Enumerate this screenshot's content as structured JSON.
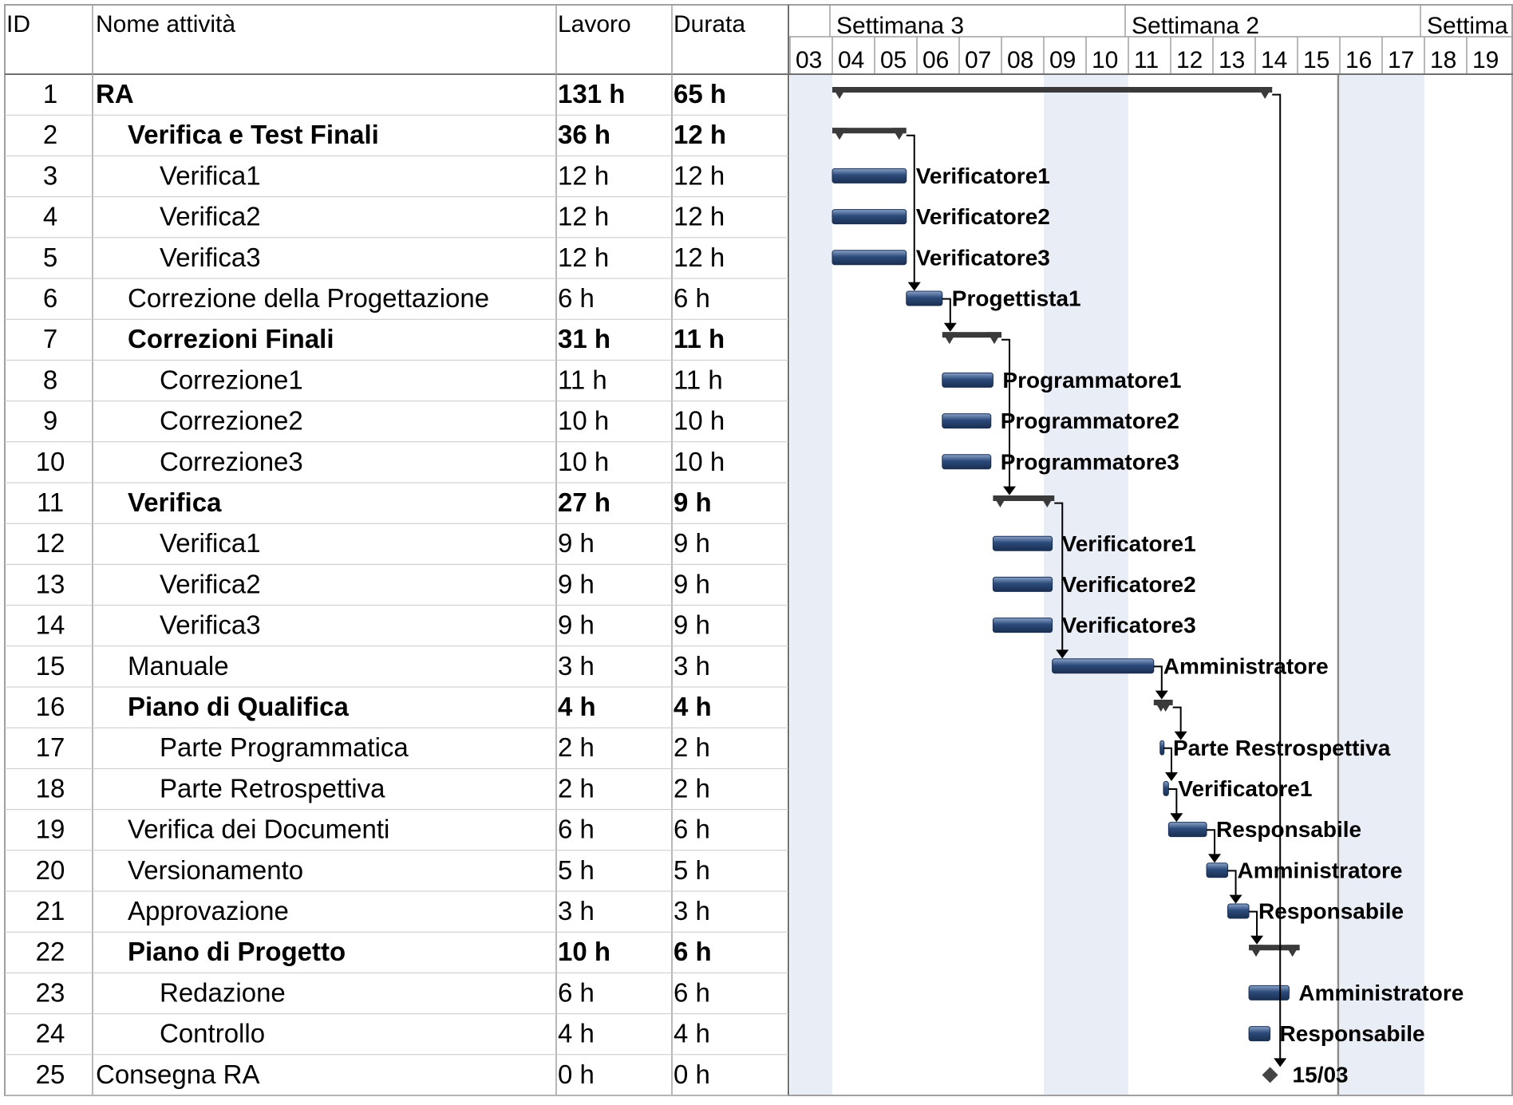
{
  "table": {
    "columns": {
      "id": "ID",
      "name": "Nome attività",
      "work": "Lavoro",
      "duration": "Durata"
    }
  },
  "timeline": {
    "weeks": [
      "Settimana 3",
      "Settimana 2",
      "Settima"
    ],
    "days": [
      "03",
      "04",
      "05",
      "06",
      "07",
      "08",
      "09",
      "10",
      "11",
      "12",
      "13",
      "14",
      "15",
      "16",
      "17",
      "18",
      "19"
    ],
    "weekend_days": [
      "03",
      "09",
      "10",
      "16",
      "17"
    ],
    "status_line_day": "15"
  },
  "colors": {
    "task_bar": "#2b4a7a",
    "summary_bar": "#3a3a3a",
    "weekend_shade": "#e8edf6",
    "grid_line": "#a0a0a0",
    "link_line": "#000000"
  },
  "chart_data": {
    "type": "gantt",
    "tasks": [
      {
        "id": "1",
        "name": "RA",
        "work": "131 h",
        "duration": "65 h",
        "level": 0,
        "summary": true,
        "start": 4.0,
        "end": 14.4,
        "resource": ""
      },
      {
        "id": "2",
        "name": "Verifica e Test Finali",
        "work": "36 h",
        "duration": "12 h",
        "level": 1,
        "summary": true,
        "start": 4.0,
        "end": 5.75,
        "resource": ""
      },
      {
        "id": "3",
        "name": "Verifica1",
        "work": "12 h",
        "duration": "12 h",
        "level": 2,
        "summary": false,
        "start": 4.0,
        "end": 5.75,
        "resource": "Verificatore1"
      },
      {
        "id": "4",
        "name": "Verifica2",
        "work": "12 h",
        "duration": "12 h",
        "level": 2,
        "summary": false,
        "start": 4.0,
        "end": 5.75,
        "resource": "Verificatore2"
      },
      {
        "id": "5",
        "name": "Verifica3",
        "work": "12 h",
        "duration": "12 h",
        "level": 2,
        "summary": false,
        "start": 4.0,
        "end": 5.75,
        "resource": "Verificatore3"
      },
      {
        "id": "6",
        "name": "Correzione della Progettazione",
        "work": "6 h",
        "duration": "6 h",
        "level": 1,
        "summary": false,
        "start": 5.75,
        "end": 6.6,
        "resource": "Progettista1"
      },
      {
        "id": "7",
        "name": "Correzioni Finali",
        "work": "31 h",
        "duration": "11 h",
        "level": 1,
        "summary": true,
        "start": 6.6,
        "end": 8.0,
        "resource": ""
      },
      {
        "id": "8",
        "name": "Correzione1",
        "work": "11 h",
        "duration": "11 h",
        "level": 2,
        "summary": false,
        "start": 6.6,
        "end": 7.8,
        "resource": "Programmatore1"
      },
      {
        "id": "9",
        "name": "Correzione2",
        "work": "10 h",
        "duration": "10 h",
        "level": 2,
        "summary": false,
        "start": 6.6,
        "end": 7.75,
        "resource": "Programmatore2"
      },
      {
        "id": "10",
        "name": "Correzione3",
        "work": "10 h",
        "duration": "10 h",
        "level": 2,
        "summary": false,
        "start": 6.6,
        "end": 7.75,
        "resource": "Programmatore3"
      },
      {
        "id": "11",
        "name": "Verifica",
        "work": "27 h",
        "duration": "9 h",
        "level": 1,
        "summary": true,
        "start": 7.8,
        "end": 9.25,
        "resource": ""
      },
      {
        "id": "12",
        "name": "Verifica1",
        "work": "9 h",
        "duration": "9 h",
        "level": 2,
        "summary": false,
        "start": 7.8,
        "end": 9.2,
        "resource": "Verificatore1"
      },
      {
        "id": "13",
        "name": "Verifica2",
        "work": "9 h",
        "duration": "9 h",
        "level": 2,
        "summary": false,
        "start": 7.8,
        "end": 9.2,
        "resource": "Verificatore2"
      },
      {
        "id": "14",
        "name": "Verifica3",
        "work": "9 h",
        "duration": "9 h",
        "level": 2,
        "summary": false,
        "start": 7.8,
        "end": 9.2,
        "resource": "Verificatore3"
      },
      {
        "id": "15",
        "name": "Manuale",
        "work": "3 h",
        "duration": "3 h",
        "level": 1,
        "summary": false,
        "start": 9.2,
        "end": 11.6,
        "resource": "Amministratore"
      },
      {
        "id": "16",
        "name": "Piano di Qualifica",
        "work": "4 h",
        "duration": "4 h",
        "level": 1,
        "summary": true,
        "start": 11.6,
        "end": 12.05,
        "resource": ""
      },
      {
        "id": "17",
        "name": "Parte Programmatica",
        "work": "2 h",
        "duration": "2 h",
        "level": 2,
        "summary": false,
        "start": 11.75,
        "end": 11.83,
        "resource": "Parte Restrospettiva"
      },
      {
        "id": "18",
        "name": "Parte Retrospettiva",
        "work": "2 h",
        "duration": "2 h",
        "level": 2,
        "summary": false,
        "start": 11.83,
        "end": 11.95,
        "resource": "Verificatore1"
      },
      {
        "id": "19",
        "name": "Verifica dei Documenti",
        "work": "6 h",
        "duration": "6 h",
        "level": 1,
        "summary": false,
        "start": 11.95,
        "end": 12.85,
        "resource": "Responsabile"
      },
      {
        "id": "20",
        "name": "Versionamento",
        "work": "5 h",
        "duration": "5 h",
        "level": 1,
        "summary": false,
        "start": 12.85,
        "end": 13.35,
        "resource": "Amministratore"
      },
      {
        "id": "21",
        "name": "Approvazione",
        "work": "3 h",
        "duration": "3 h",
        "level": 1,
        "summary": false,
        "start": 13.35,
        "end": 13.85,
        "resource": "Responsabile"
      },
      {
        "id": "22",
        "name": "Piano di Progetto",
        "work": "10 h",
        "duration": "6 h",
        "level": 1,
        "summary": true,
        "start": 13.85,
        "end": 15.05,
        "resource": ""
      },
      {
        "id": "23",
        "name": "Redazione",
        "work": "6 h",
        "duration": "6 h",
        "level": 2,
        "summary": false,
        "start": 13.85,
        "end": 14.8,
        "resource": "Amministratore"
      },
      {
        "id": "24",
        "name": "Controllo",
        "work": "4 h",
        "duration": "4 h",
        "level": 2,
        "summary": false,
        "start": 13.85,
        "end": 14.35,
        "resource": "Responsabile"
      },
      {
        "id": "25",
        "name": "Consegna RA",
        "work": "0 h",
        "duration": "0 h",
        "level": 0,
        "summary": false,
        "milestone": true,
        "start": 14.35,
        "end": 14.35,
        "resource": "15/03"
      }
    ],
    "links": [
      [
        2,
        6
      ],
      [
        6,
        7
      ],
      [
        7,
        11
      ],
      [
        11,
        15
      ],
      [
        15,
        16
      ],
      [
        16,
        17
      ],
      [
        17,
        18
      ],
      [
        18,
        19
      ],
      [
        19,
        20
      ],
      [
        20,
        21
      ],
      [
        21,
        22
      ],
      [
        1,
        25
      ]
    ]
  }
}
